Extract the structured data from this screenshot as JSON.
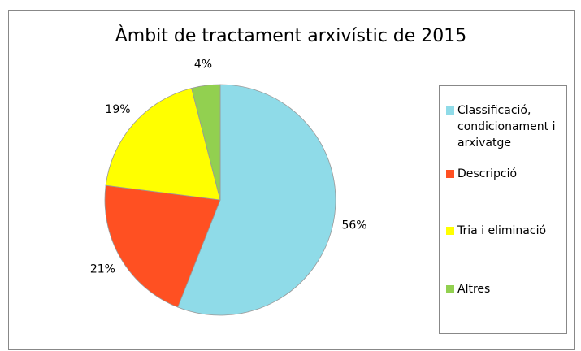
{
  "chart_data": {
    "type": "pie",
    "title": "Àmbit de tractament arxivístic de 2015",
    "categories": [
      "Classificació, condicionament i arxivatge",
      "Descripció",
      "Tria i eliminació",
      "Altres"
    ],
    "values": [
      56,
      21,
      19,
      4
    ],
    "value_labels": [
      "56%",
      "21%",
      "19%",
      "4%"
    ],
    "colors": [
      "#8fdbe8",
      "#ff5022",
      "#ffff00",
      "#92d050"
    ]
  }
}
